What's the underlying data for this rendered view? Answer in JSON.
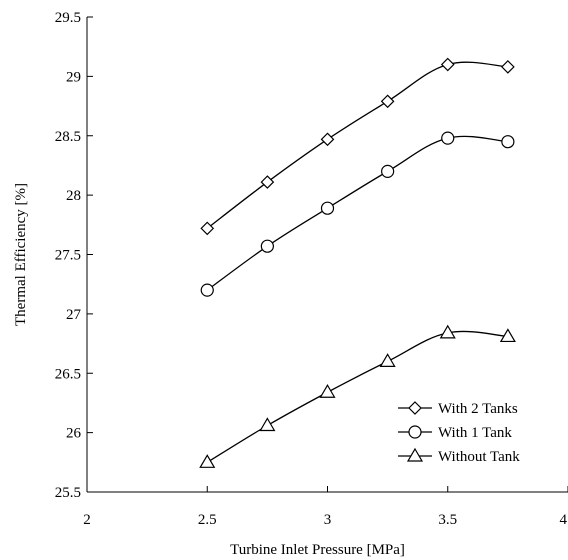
{
  "chart_data": {
    "type": "line",
    "title": "",
    "xlabel": "Turbine Inlet Pressure [MPa]",
    "ylabel": "Thermal Efficiency [%]",
    "xlim": [
      2,
      4
    ],
    "ylim": [
      25.5,
      29.5
    ],
    "x_ticks": [
      2,
      2.5,
      3,
      3.5,
      4
    ],
    "x_tick_labels": [
      "2",
      "2.5",
      "3",
      "3.5",
      "4"
    ],
    "y_ticks": [
      25.5,
      26,
      26.5,
      27,
      27.5,
      28,
      28.5,
      29,
      29.5
    ],
    "y_tick_labels": [
      "25.5",
      "26",
      "26.5",
      "27",
      "27.5",
      "28",
      "28.5",
      "29",
      "29.5"
    ],
    "grid": false,
    "legend_position": "bottom-right",
    "series": [
      {
        "name": "With 2 Tanks",
        "marker": "diamond",
        "x": [
          2.5,
          2.75,
          3,
          3.25,
          3.5,
          3.75
        ],
        "y": [
          27.72,
          28.11,
          28.47,
          28.79,
          29.1,
          29.08
        ]
      },
      {
        "name": "With 1 Tank",
        "marker": "circle",
        "x": [
          2.5,
          2.75,
          3,
          3.25,
          3.5,
          3.75
        ],
        "y": [
          27.2,
          27.57,
          27.89,
          28.2,
          28.48,
          28.45
        ]
      },
      {
        "name": "Without Tank",
        "marker": "triangle",
        "x": [
          2.5,
          2.75,
          3,
          3.25,
          3.5,
          3.75
        ],
        "y": [
          25.75,
          26.06,
          26.34,
          26.6,
          26.84,
          26.81
        ]
      }
    ]
  }
}
